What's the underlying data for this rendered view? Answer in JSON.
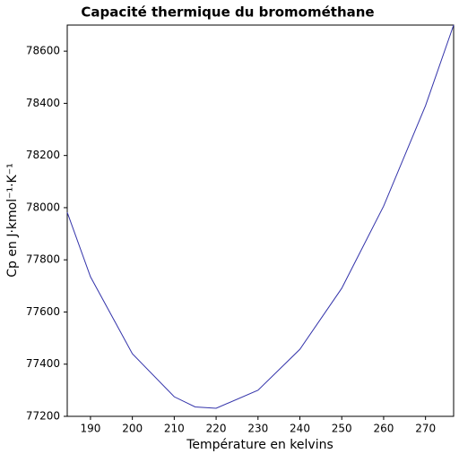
{
  "chart_data": {
    "type": "line",
    "title": "Capacité thermique du bromométhane",
    "x_label": "Température en kelvins",
    "y_label": "Cp en J·kmol⁻¹·K⁻¹",
    "x": [
      184.45,
      190,
      200,
      210,
      215,
      220,
      230,
      240,
      250,
      260,
      270,
      276.71
    ],
    "series": [
      {
        "name": "Cp",
        "color": "#3333aa",
        "values": [
          77982,
          77735,
          77440,
          77275,
          77236,
          77231,
          77300,
          77457,
          77691,
          78006,
          78391,
          78700
        ]
      }
    ],
    "xlim": [
      184.45,
      276.71
    ],
    "ylim": [
      77200,
      78700
    ],
    "xticks": [
      190,
      200,
      210,
      220,
      230,
      240,
      250,
      260,
      270
    ],
    "yticks": [
      77200,
      77400,
      77600,
      77800,
      78000,
      78200,
      78400,
      78600
    ],
    "grid": false
  }
}
